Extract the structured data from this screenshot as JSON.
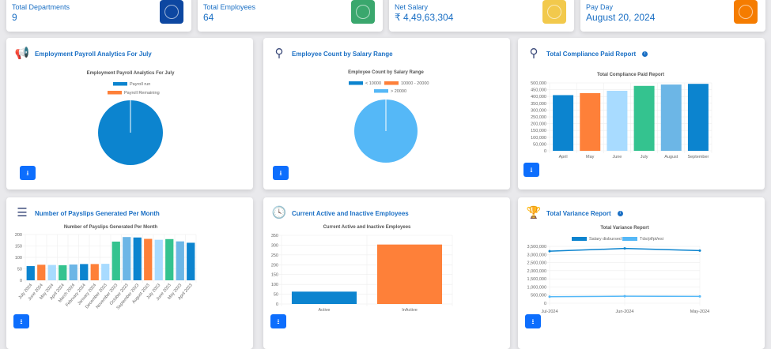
{
  "stats": [
    {
      "label": "Total Departments",
      "value": "9",
      "color": "#0d47a1",
      "icon": "clipboard-icon"
    },
    {
      "label": "Total Employees",
      "value": "64",
      "color": "#3aa76d",
      "icon": "users-icon"
    },
    {
      "label": "Net Salary",
      "value": "₹ 4,49,63,304",
      "color": "#f2c94c",
      "icon": "money-icon"
    },
    {
      "label": "Pay Day",
      "value": "August 20, 2024",
      "color": "#f57c00",
      "icon": "calendar-icon"
    }
  ],
  "cards": {
    "payroll": {
      "title": "Employment Payroll Analytics For July",
      "icon": "megaphone-icon"
    },
    "salary_range": {
      "title": "Employee Count by Salary Range",
      "icon": "user-search-icon"
    },
    "compliance": {
      "title": "Total Compliance Paid Report",
      "icon": "user-search-icon"
    },
    "payslips": {
      "title": "Number of Payslips Generated Per Month",
      "icon": "list-icon"
    },
    "active": {
      "title": "Current Active and Inactive Employees",
      "icon": "clock-icon"
    },
    "variance": {
      "title": "Total Variance Report",
      "icon": "trophy-icon"
    }
  },
  "chart_data": [
    {
      "id": "payroll",
      "type": "pie",
      "title": "Employment Payroll Analytics For July",
      "categories": [
        "Payroll run",
        "Payroll Remaining"
      ],
      "values": [
        100,
        0
      ],
      "colors": [
        "#0c84cf",
        "#fe8039"
      ],
      "legend": "top"
    },
    {
      "id": "salary_range",
      "type": "pie",
      "title": "Employee Count by Salary Range",
      "categories": [
        "< 10000",
        "10000 - 20000",
        "> 20000"
      ],
      "values": [
        0,
        0,
        64
      ],
      "colors": [
        "#0c84cf",
        "#fe8039",
        "#55b8f7"
      ],
      "legend": "top"
    },
    {
      "id": "compliance",
      "type": "bar",
      "title": "Total Compliance Paid Report",
      "categories": [
        "April",
        "May",
        "June",
        "July",
        "August",
        "September"
      ],
      "values": [
        410000,
        425000,
        442000,
        478000,
        488000,
        493000
      ],
      "colors": [
        "#0c84cf",
        "#fe8039",
        "#a8dbff",
        "#34c38f",
        "#6cb6e6",
        "#0c84cf"
      ],
      "ylim": [
        0,
        500000
      ],
      "yticks": [
        0,
        50000,
        100000,
        150000,
        200000,
        250000,
        300000,
        350000,
        400000,
        450000,
        500000
      ],
      "grid": true
    },
    {
      "id": "payslips",
      "type": "bar",
      "title": "Number of Payslips Generated Per Month",
      "categories": [
        "July 2024",
        "June 2024",
        "May 2024",
        "April 2024",
        "March 2024",
        "February 2024",
        "January 2024",
        "December 2023",
        "November 2023",
        "October 2023",
        "September 2023",
        "August 2023",
        "July 2023",
        "June 2023",
        "May 2023",
        "April 2023"
      ],
      "values": [
        62,
        68,
        67,
        66,
        69,
        71,
        71,
        72,
        169,
        189,
        187,
        181,
        177,
        180,
        170,
        164
      ],
      "colors": [
        "#0c84cf",
        "#fe8039",
        "#a8dbff",
        "#34c38f",
        "#6cb6e6"
      ],
      "ylim": [
        0,
        200
      ],
      "yticks": [
        0,
        50,
        100,
        150,
        200
      ],
      "grid": true
    },
    {
      "id": "active",
      "type": "bar",
      "title": "Current Active and Inactive Employees",
      "categories": [
        "Active",
        "InActive"
      ],
      "values": [
        63,
        303
      ],
      "colors": [
        "#0c84cf",
        "#fe8039"
      ],
      "ylim": [
        0,
        350
      ],
      "yticks": [
        0,
        50,
        100,
        150,
        200,
        250,
        300,
        350
      ],
      "grid": true
    },
    {
      "id": "variance",
      "type": "line",
      "title": "Total Variance Report",
      "categories": [
        "Jul-2024",
        "Jun-2024",
        "May-2024"
      ],
      "series": [
        {
          "name": "Salary disbursed",
          "values": [
            3200000,
            3370000,
            3240000
          ],
          "color": "#0c84cf"
        },
        {
          "name": "Tds/pf/pt/esi",
          "values": [
            400000,
            430000,
            420000
          ],
          "color": "#55b8f7"
        }
      ],
      "ylim": [
        0,
        3500000
      ],
      "yticks": [
        0,
        500000,
        1000000,
        1500000,
        2000000,
        2500000,
        3000000,
        3500000
      ],
      "legend": "top",
      "grid": true
    }
  ]
}
